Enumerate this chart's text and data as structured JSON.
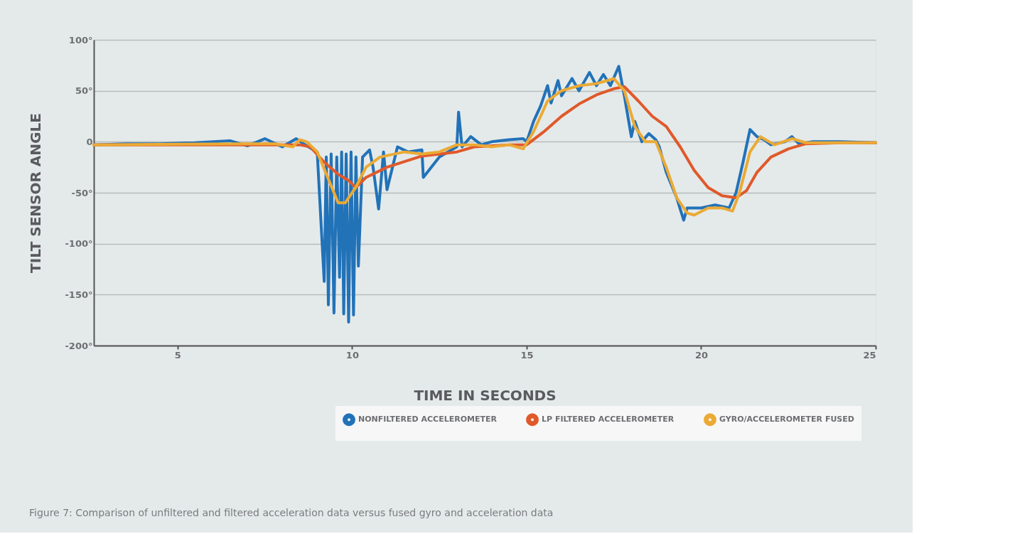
{
  "chart_data": {
    "type": "line",
    "xlabel": "TIME IN SECONDS",
    "ylabel": "TILT SENSOR ANGLE",
    "annotations": [
      "Figure 7: Comparison of unfiltered and filtered acceleration data versus fused gyro and acceleration data"
    ],
    "xlim": [
      2.6,
      25
    ],
    "xticks": [
      5,
      10,
      15,
      20,
      25
    ],
    "ylim": [
      -200,
      100
    ],
    "yticks": [
      {
        "value": -200,
        "label": "-200°"
      },
      {
        "value": -150,
        "label": "-150°"
      },
      {
        "value": -100,
        "label": "-100°"
      },
      {
        "value": -50,
        "label": "-50°"
      },
      {
        "value": 0,
        "label": "0"
      },
      {
        "value": 50,
        "label": "50°"
      },
      {
        "value": 100,
        "label": "100°"
      }
    ],
    "grid": "y",
    "legend": "bottom right",
    "line_style": "solid",
    "marker": "none",
    "series": [
      {
        "name": "NONFILTERED ACCELEROMETER",
        "color": "#2272b8",
        "x": [
          2.6,
          3.5,
          4.5,
          5.5,
          6.5,
          7.0,
          7.5,
          8.0,
          8.4,
          8.7,
          9.0,
          9.2,
          9.26,
          9.32,
          9.4,
          9.48,
          9.56,
          9.64,
          9.7,
          9.76,
          9.83,
          9.9,
          9.97,
          10.04,
          10.11,
          10.18,
          10.3,
          10.5,
          10.6,
          10.76,
          10.9,
          11.0,
          11.3,
          11.6,
          12.0,
          12.04,
          12.5,
          13.0,
          13.05,
          13.15,
          13.4,
          13.7,
          14.0,
          14.5,
          14.9,
          15.0,
          15.2,
          15.4,
          15.6,
          15.7,
          15.9,
          16.0,
          16.3,
          16.5,
          16.8,
          17.0,
          17.2,
          17.4,
          17.64,
          17.8,
          18.0,
          18.1,
          18.3,
          18.5,
          18.7,
          18.8,
          19.0,
          19.3,
          19.5,
          19.6,
          20.0,
          20.4,
          20.8,
          21.0,
          21.2,
          21.4,
          21.6,
          21.8,
          22.0,
          22.4,
          22.6,
          22.8,
          23.2,
          23.6,
          24.0,
          25.0
        ],
        "values": [
          -3,
          -2,
          -2,
          -1,
          1,
          -4,
          3,
          -5,
          3,
          -4,
          -10,
          -137,
          -15,
          -160,
          -12,
          -168,
          -15,
          -133,
          -10,
          -169,
          -12,
          -177,
          -10,
          -170,
          -15,
          -122,
          -15,
          -8,
          -25,
          -66,
          -10,
          -47,
          -5,
          -10,
          -8,
          -35,
          -15,
          -5,
          29,
          -5,
          5,
          -3,
          0,
          2,
          3,
          0,
          20,
          35,
          55,
          38,
          60,
          45,
          62,
          50,
          68,
          55,
          66,
          55,
          74,
          45,
          5,
          20,
          0,
          8,
          2,
          -5,
          -30,
          -55,
          -77,
          -65,
          -65,
          -62,
          -65,
          -50,
          -20,
          12,
          5,
          2,
          -3,
          0,
          5,
          -2,
          0,
          0,
          0,
          -1
        ]
      },
      {
        "name": "LP FILTERED ACCELEROMETER",
        "color": "#e0592a",
        "x": [
          2.6,
          8.5,
          8.8,
          9.2,
          9.6,
          9.9,
          10.1,
          10.4,
          11.0,
          12.0,
          13.0,
          13.5,
          14.5,
          15.0,
          15.5,
          16.0,
          16.5,
          17.0,
          17.5,
          17.8,
          18.2,
          18.6,
          19.0,
          19.4,
          19.8,
          20.2,
          20.6,
          21.0,
          21.3,
          21.6,
          22.0,
          22.5,
          23.0,
          24.0,
          25.0
        ],
        "values": [
          -3,
          -3,
          -5,
          -20,
          -32,
          -38,
          -45,
          -35,
          -25,
          -14,
          -10,
          -5,
          -3,
          -3,
          10,
          25,
          37,
          46,
          52,
          54,
          40,
          25,
          15,
          -5,
          -28,
          -45,
          -53,
          -55,
          -48,
          -30,
          -15,
          -7,
          -2,
          -1,
          -1
        ]
      },
      {
        "name": "GYRO/ACCELEROMETER FUSED",
        "color": "#ebaa35",
        "x": [
          2.6,
          7.0,
          7.8,
          8.3,
          8.5,
          8.7,
          9.0,
          9.3,
          9.6,
          9.8,
          10.1,
          10.4,
          10.8,
          11.5,
          12.0,
          12.5,
          13.0,
          13.5,
          14.0,
          14.5,
          14.9,
          15.2,
          15.6,
          16.0,
          16.5,
          17.0,
          17.5,
          17.8,
          18.1,
          18.4,
          18.7,
          19.0,
          19.3,
          19.6,
          19.8,
          20.2,
          20.6,
          20.9,
          21.1,
          21.4,
          21.7,
          22.1,
          22.6,
          23.0,
          25.0
        ],
        "values": [
          -3,
          -2,
          -2,
          -5,
          2,
          0,
          -10,
          -35,
          -60,
          -60,
          -45,
          -25,
          -15,
          -10,
          -12,
          -10,
          -3,
          -3,
          -5,
          -3,
          -7,
          10,
          40,
          50,
          55,
          57,
          62,
          50,
          15,
          0,
          0,
          -25,
          -55,
          -70,
          -72,
          -65,
          -65,
          -68,
          -50,
          -10,
          5,
          -3,
          3,
          -1,
          -1
        ]
      }
    ]
  }
}
